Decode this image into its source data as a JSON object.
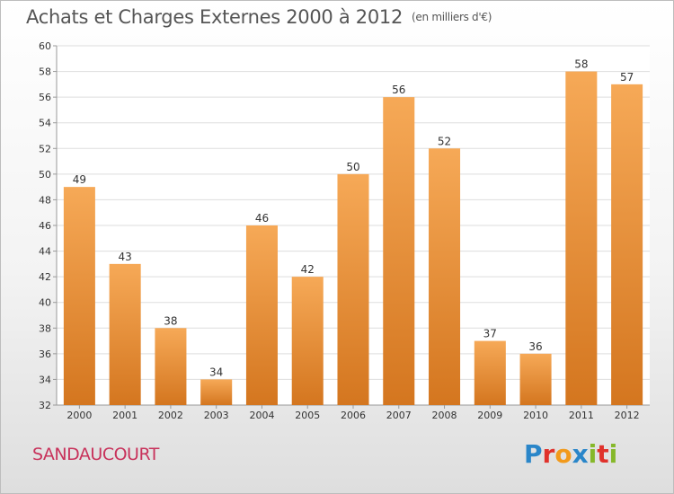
{
  "header": {
    "title": "Achats et Charges Externes 2000 à 2012",
    "unit": "(en milliers d'€)"
  },
  "footer": {
    "commune": "SANDAUCOURT",
    "logo_text": "Proxiti",
    "logo_colors": [
      "#2a86c9",
      "#e0322b",
      "#f29a1b",
      "#2a86c9",
      "#86b82a",
      "#e0322b",
      "#86b82a"
    ]
  },
  "colors": {
    "bar_light": "#f6a957",
    "bar_dark": "#d4761f",
    "grid": "#dddddd",
    "title": "#555555",
    "commune": "#c8325b"
  },
  "chart_data": {
    "type": "bar",
    "categories": [
      "2000",
      "2001",
      "2002",
      "2003",
      "2004",
      "2005",
      "2006",
      "2007",
      "2008",
      "2009",
      "2010",
      "2011",
      "2012"
    ],
    "values": [
      49,
      43,
      38,
      34,
      46,
      42,
      50,
      56,
      52,
      37,
      36,
      58,
      57
    ],
    "ylim": [
      32,
      60
    ],
    "yticks": [
      32,
      34,
      36,
      38,
      40,
      42,
      44,
      46,
      48,
      50,
      52,
      54,
      56,
      58,
      60
    ],
    "grid": true,
    "xlabel": "",
    "ylabel": ""
  }
}
